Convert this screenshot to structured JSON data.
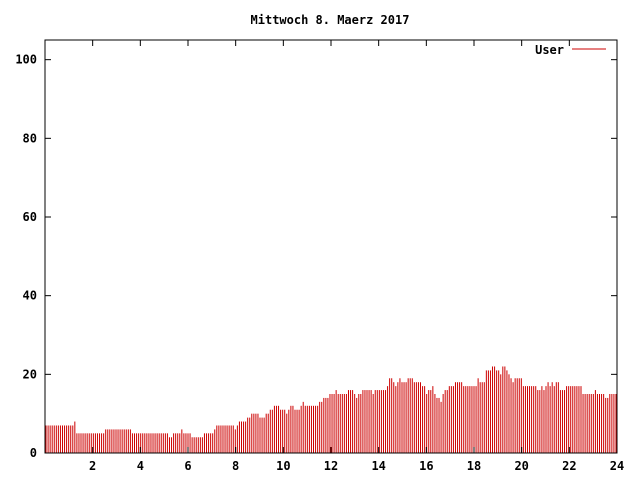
{
  "chart_data": {
    "type": "bar",
    "title": "Mittwoch 8. Maerz 2017",
    "xlim": [
      0,
      24
    ],
    "ylim": [
      0,
      105
    ],
    "xticks": [
      2,
      4,
      6,
      8,
      10,
      12,
      14,
      16,
      18,
      20,
      22,
      24
    ],
    "yticks": [
      0,
      20,
      40,
      60,
      80,
      100
    ],
    "legend_position": "top-right",
    "series": [
      {
        "name": "User",
        "color": "#cc0000",
        "step_hours": 0.0833,
        "values": [
          7,
          7,
          7,
          7,
          7,
          7,
          7,
          7,
          7,
          7,
          7,
          7,
          7,
          7,
          8,
          5,
          5,
          5,
          5,
          5,
          5,
          5,
          5,
          5,
          5,
          5,
          5,
          5,
          5,
          6,
          6,
          6,
          6,
          6,
          6,
          6,
          6,
          6,
          6,
          6,
          6,
          6,
          5,
          5,
          5,
          5,
          5,
          5,
          5,
          5,
          5,
          5,
          5,
          5,
          5,
          5,
          5,
          5,
          5,
          5,
          4,
          4,
          5,
          5,
          5,
          5,
          6,
          5,
          5,
          5,
          5,
          4,
          4,
          4,
          4,
          4,
          4,
          5,
          5,
          5,
          5,
          5,
          6,
          7,
          7,
          7,
          7,
          7,
          7,
          7,
          7,
          7,
          6,
          7,
          8,
          8,
          8,
          8,
          9,
          9,
          10,
          10,
          10,
          10,
          9,
          9,
          9,
          10,
          10,
          11,
          11,
          12,
          12,
          12,
          11,
          11,
          11,
          10,
          11,
          12,
          12,
          11,
          11,
          11,
          12,
          13,
          12,
          12,
          12,
          12,
          12,
          12,
          12,
          13,
          13,
          14,
          14,
          14,
          15,
          15,
          15,
          16,
          15,
          15,
          15,
          15,
          15,
          16,
          16,
          16,
          15,
          14,
          15,
          15,
          16,
          16,
          16,
          16,
          16,
          15,
          16,
          16,
          16,
          16,
          16,
          16,
          17,
          19,
          19,
          18,
          17,
          18,
          19,
          18,
          18,
          18,
          19,
          19,
          19,
          18,
          18,
          18,
          18,
          17,
          17,
          15,
          16,
          16,
          17,
          15,
          14,
          14,
          13,
          15,
          16,
          16,
          17,
          17,
          17,
          18,
          18,
          18,
          18,
          17,
          17,
          17,
          17,
          17,
          17,
          17,
          19,
          18,
          18,
          18,
          21,
          21,
          21,
          22,
          22,
          21,
          21,
          20,
          22,
          22,
          21,
          20,
          19,
          18,
          19,
          19,
          19,
          19,
          17,
          17,
          17,
          17,
          17,
          17,
          17,
          16,
          16,
          17,
          16,
          17,
          18,
          17,
          18,
          17,
          18,
          18,
          16,
          16,
          16,
          17,
          17,
          17,
          17,
          17,
          17,
          17,
          17,
          15,
          15,
          15,
          15,
          15,
          15,
          16,
          15,
          15,
          15,
          15,
          14,
          14,
          15,
          15,
          15,
          15
        ]
      }
    ]
  }
}
